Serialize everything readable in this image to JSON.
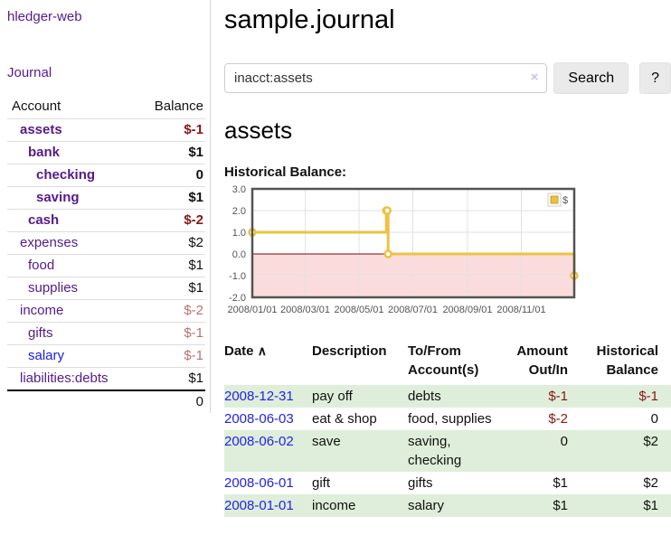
{
  "colors": {
    "link_purple": "#551a8b",
    "link_blue": "#1a1ae6",
    "negative_strong": "#8b1515",
    "negative_soft": "#bd6f6f",
    "row_green": "#dfeeda",
    "series_yellow": "#edc240",
    "zero_line": "#8b0000",
    "negative_region": "#fbdcdc"
  },
  "sidebar": {
    "brand": "hledger-web",
    "journal_link": "Journal",
    "header": {
      "account": "Account",
      "balance": "Balance"
    },
    "accounts": [
      {
        "name": "assets",
        "depth": 1,
        "acct_class": "match",
        "balance": "$-1",
        "bal_class": "neg match"
      },
      {
        "name": "bank",
        "depth": 2,
        "acct_class": "match",
        "balance": "$1",
        "bal_class": "match"
      },
      {
        "name": "checking",
        "depth": 3,
        "acct_class": "match",
        "balance": "0",
        "bal_class": "match"
      },
      {
        "name": "saving",
        "depth": 3,
        "acct_class": "match",
        "balance": "$1",
        "bal_class": "match"
      },
      {
        "name": "cash",
        "depth": 2,
        "acct_class": "match",
        "balance": "$-2",
        "bal_class": "neg match"
      },
      {
        "name": "expenses",
        "depth": 1,
        "acct_class": "",
        "balance": "$2",
        "bal_class": ""
      },
      {
        "name": "food",
        "depth": 2,
        "acct_class": "",
        "balance": "$1",
        "bal_class": ""
      },
      {
        "name": "supplies",
        "depth": 2,
        "acct_class": "",
        "balance": "$1",
        "bal_class": ""
      },
      {
        "name": "income",
        "depth": 1,
        "acct_class": "",
        "balance": "$-2",
        "bal_class": "negsoft"
      },
      {
        "name": "gifts",
        "depth": 2,
        "acct_class": "",
        "balance": "$-1",
        "bal_class": "negsoft"
      },
      {
        "name": "salary",
        "depth": 2,
        "acct_class": "unvisited",
        "balance": "$-1",
        "bal_class": "negsoft"
      },
      {
        "name": "liabilities:debts",
        "depth": 1,
        "acct_class": "",
        "balance": "$1",
        "bal_class": ""
      }
    ],
    "total": "0"
  },
  "main": {
    "title": "sample.journal",
    "search": {
      "value": "inacct:assets",
      "clear_icon": "×",
      "search_button": "Search",
      "help_button": "?"
    },
    "account_heading": "assets",
    "chart_label": "Historical Balance:"
  },
  "chart_data": {
    "type": "line",
    "title": "Historical Balance",
    "series": [
      {
        "name": "$",
        "color": "#edc240",
        "step": true,
        "points": [
          [
            "2008-01-01",
            1
          ],
          [
            "2008-06-01",
            2
          ],
          [
            "2008-06-02",
            2
          ],
          [
            "2008-06-03",
            0
          ],
          [
            "2008-12-31",
            -1
          ]
        ]
      }
    ],
    "x_range": [
      "2008-01-01",
      "2008-12-31"
    ],
    "x_ticks": [
      "2008/01/01",
      "2008/03/01",
      "2008/05/01",
      "2008/07/01",
      "2008/09/01",
      "2008/11/01"
    ],
    "y_ticks": [
      3,
      2,
      1,
      0,
      -1,
      -2
    ],
    "ylim": [
      -2,
      3
    ],
    "grid": true,
    "legend": {
      "label": "$",
      "position": "top-right"
    },
    "zero_line_color": "#8b0000",
    "negative_region_fill": "#fbdcdc"
  },
  "register": {
    "sort_ascending_icon": "∧",
    "columns": [
      {
        "label": "Date"
      },
      {
        "label": "Description"
      },
      {
        "label": "To/From Account(s)"
      },
      {
        "label": "Amount Out/In"
      },
      {
        "label": "Historical Balance"
      }
    ],
    "rows": [
      {
        "date": "2008-12-31",
        "description": "pay off",
        "accounts": "debts",
        "amount": "$-1",
        "amount_class": "neg",
        "balance": "$-1",
        "balance_class": "neg"
      },
      {
        "date": "2008-06-03",
        "description": "eat & shop",
        "accounts": "food, supplies",
        "amount": "$-2",
        "amount_class": "neg",
        "balance": "0",
        "balance_class": ""
      },
      {
        "date": "2008-06-02",
        "description": "save",
        "accounts": "saving, checking",
        "amount": "0",
        "amount_class": "",
        "balance": "$2",
        "balance_class": ""
      },
      {
        "date": "2008-06-01",
        "description": "gift",
        "accounts": "gifts",
        "amount": "$1",
        "amount_class": "",
        "balance": "$2",
        "balance_class": ""
      },
      {
        "date": "2008-01-01",
        "description": "income",
        "accounts": "salary",
        "amount": "$1",
        "amount_class": "",
        "balance": "$1",
        "balance_class": ""
      }
    ]
  }
}
